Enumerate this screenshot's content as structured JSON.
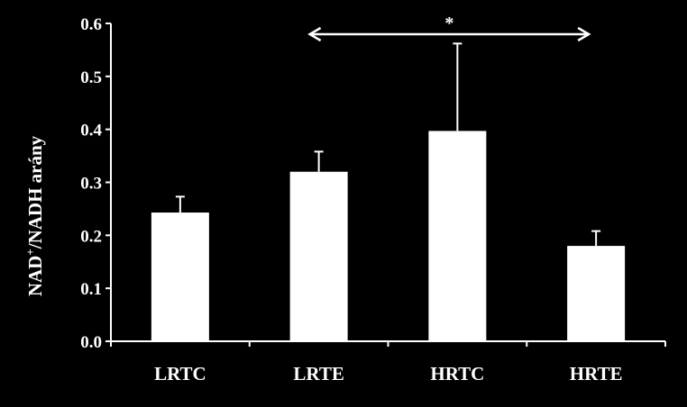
{
  "chart_data": {
    "type": "bar",
    "categories": [
      "LRTC",
      "LRTE",
      "HRTC",
      "HRTE"
    ],
    "values": [
      0.243,
      0.32,
      0.397,
      0.18
    ],
    "errors": [
      0.03,
      0.038,
      0.165,
      0.028
    ],
    "ylabel_main": "NAD",
    "ylabel_sup": "+",
    "ylabel_rest": "/NADH  arány",
    "ylim": [
      0,
      0.6
    ],
    "yticks": [
      "0.0",
      "0.1",
      "0.2",
      "0.3",
      "0.4",
      "0.5",
      "0.6"
    ],
    "ytick_values": [
      0,
      0.1,
      0.2,
      0.3,
      0.4,
      0.5,
      0.6
    ],
    "grid": false,
    "bar_color": "#ffffff",
    "background": "#000000",
    "significance": {
      "from": "LRTE",
      "to": "HRTE",
      "label": "*"
    }
  }
}
